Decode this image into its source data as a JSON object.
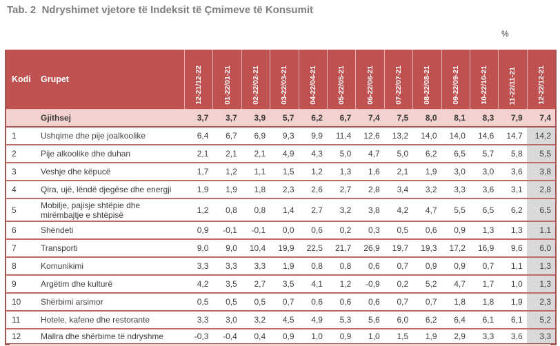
{
  "title": "Tab. 2  Ndryshimet vjetore të Indeksit të Çmimeve të Konsumit",
  "unit_label": "%",
  "colors": {
    "header_bg": "#bf5150",
    "total_row_bg": "#f3d1ce",
    "last_column_bg": "#d9d9d9",
    "row_border": "#bb6b66",
    "outer_border": "#a85551",
    "title_color": "#7d7d7d"
  },
  "table": {
    "code_header": "Kodi",
    "group_header": "Grupet",
    "period_headers": [
      "12-21/12-22",
      "01-22/01-21",
      "02-22/02-21",
      "03-22/03-21",
      "04-22/04-21",
      "05-22/05-21",
      "06-22/06-21",
      "07-22/07-21",
      "08-22/08-21",
      "09-22/09-21",
      "10-22/10-21",
      "11-22/11-21",
      "12-22/12-21"
    ],
    "total_row": {
      "code": "",
      "label": "Gjithsej",
      "values": [
        "3,7",
        "3,7",
        "3,9",
        "5,7",
        "6,2",
        "6,7",
        "7,4",
        "7,5",
        "8,0",
        "8,1",
        "8,3",
        "7,9",
        "7,4"
      ]
    },
    "rows": [
      {
        "code": "1",
        "label": "Ushqime dhe pije joalkoolike",
        "values": [
          "6,4",
          "6,7",
          "6,9",
          "9,3",
          "9,9",
          "11,4",
          "12,6",
          "13,2",
          "14,0",
          "14,0",
          "14,6",
          "14,7",
          "14,2"
        ]
      },
      {
        "code": "2",
        "label": "Pije alkoolike dhe duhan",
        "values": [
          "2,1",
          "2,1",
          "2,1",
          "4,9",
          "4,3",
          "5,0",
          "4,7",
          "5,0",
          "6,2",
          "6,5",
          "5,7",
          "5,8",
          "5,5"
        ]
      },
      {
        "code": "3",
        "label": "Veshje dhe këpucë",
        "values": [
          "1,7",
          "1,2",
          "1,1",
          "1,5",
          "1,2",
          "1,3",
          "1,6",
          "2,1",
          "1,9",
          "3,0",
          "3,0",
          "3,6",
          "3,8"
        ]
      },
      {
        "code": "4",
        "label": "Qira, ujë, lëndë djegëse dhe energji",
        "values": [
          "1,9",
          "1,9",
          "1,8",
          "2,3",
          "2,6",
          "2,7",
          "2,8",
          "3,4",
          "3,2",
          "3,3",
          "3,6",
          "3,1",
          "2,8"
        ]
      },
      {
        "code": "5",
        "label": "Mobilje, pajisje shtëpie dhe mirëmbajtje e shtëpisë",
        "values": [
          "1,2",
          "0,8",
          "0,8",
          "1,4",
          "2,7",
          "3,2",
          "3,8",
          "4,2",
          "4,7",
          "5,5",
          "6,5",
          "6,2",
          "6,5"
        ]
      },
      {
        "code": "6",
        "label": "Shëndeti",
        "values": [
          "0,9",
          "-0,1",
          "-0,1",
          "0,0",
          "0,6",
          "0,2",
          "0,3",
          "0,5",
          "0,6",
          "0,9",
          "1,3",
          "1,3",
          "1,1"
        ]
      },
      {
        "code": "7",
        "label": "Transporti",
        "values": [
          "9,0",
          "9,0",
          "10,4",
          "19,9",
          "22,5",
          "21,7",
          "26,9",
          "19,7",
          "19,3",
          "17,2",
          "16,9",
          "9,6",
          "6,0"
        ]
      },
      {
        "code": "8",
        "label": "Komunikimi",
        "values": [
          "3,3",
          "3,3",
          "3,3",
          "1,9",
          "0,8",
          "0,8",
          "0,6",
          "0,7",
          "0,9",
          "0,9",
          "0,7",
          "1,1",
          "1,3"
        ]
      },
      {
        "code": "9",
        "label": "Argëtim dhe kulturë",
        "values": [
          "4,2",
          "3,5",
          "2,7",
          "3,5",
          "4,1",
          "1,2",
          "-0,9",
          "0,2",
          "5,2",
          "4,7",
          "1,7",
          "1,0",
          "1,3"
        ]
      },
      {
        "code": "10",
        "label": "Shërbimi arsimor",
        "values": [
          "0,5",
          "0,5",
          "0,5",
          "0,7",
          "0,6",
          "0,6",
          "0,6",
          "0,7",
          "0,7",
          "1,8",
          "1,8",
          "1,9",
          "2,3"
        ]
      },
      {
        "code": "11",
        "label": "Hotele, kafene dhe restorante",
        "values": [
          "3,3",
          "3,0",
          "3,2",
          "4,5",
          "4,9",
          "5,3",
          "5,6",
          "6,0",
          "6,2",
          "6,4",
          "6,1",
          "6,1",
          "5,2"
        ]
      },
      {
        "code": "12",
        "label": "Mallra dhe shërbime të ndryshme",
        "values": [
          "-0,3",
          "-0,4",
          "0,4",
          "0,9",
          "1,0",
          "0,9",
          "1,0",
          "1,5",
          "1,9",
          "2,9",
          "3,3",
          "3,6",
          "3,3"
        ]
      }
    ]
  }
}
